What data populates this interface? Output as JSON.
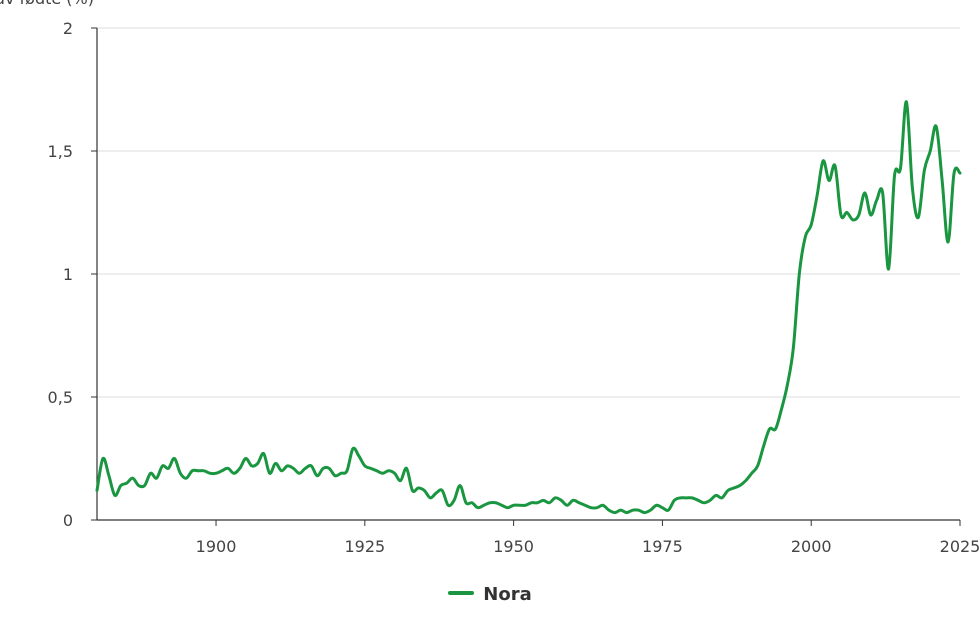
{
  "chart_data": {
    "type": "line",
    "ylabel": "Andel av fødte (%)",
    "xlabel": "",
    "xlim": [
      1880,
      2025
    ],
    "ylim": [
      0,
      2
    ],
    "x_ticks": [
      1900,
      1925,
      1950,
      1975,
      2000,
      2025
    ],
    "x_tick_labels": [
      "1900",
      "1925",
      "1950",
      "1975",
      "2000",
      "2025"
    ],
    "y_ticks": [
      0,
      0.5,
      1,
      1.5,
      2
    ],
    "y_tick_labels": [
      "0",
      "0,5",
      "1",
      "1,5",
      "2"
    ],
    "grid": "horizontal",
    "legend_position": "bottom-center",
    "colors": {
      "series": "#1a9641"
    },
    "series": [
      {
        "name": "Nora",
        "x": [
          1880,
          1881,
          1882,
          1883,
          1884,
          1885,
          1886,
          1887,
          1888,
          1889,
          1890,
          1891,
          1892,
          1893,
          1894,
          1895,
          1896,
          1897,
          1898,
          1899,
          1900,
          1901,
          1902,
          1903,
          1904,
          1905,
          1906,
          1907,
          1908,
          1909,
          1910,
          1911,
          1912,
          1913,
          1914,
          1915,
          1916,
          1917,
          1918,
          1919,
          1920,
          1921,
          1922,
          1923,
          1924,
          1925,
          1926,
          1927,
          1928,
          1929,
          1930,
          1931,
          1932,
          1933,
          1934,
          1935,
          1936,
          1937,
          1938,
          1939,
          1940,
          1941,
          1942,
          1943,
          1944,
          1945,
          1946,
          1947,
          1948,
          1949,
          1950,
          1951,
          1952,
          1953,
          1954,
          1955,
          1956,
          1957,
          1958,
          1959,
          1960,
          1961,
          1962,
          1963,
          1964,
          1965,
          1966,
          1967,
          1968,
          1969,
          1970,
          1971,
          1972,
          1973,
          1974,
          1975,
          1976,
          1977,
          1978,
          1979,
          1980,
          1981,
          1982,
          1983,
          1984,
          1985,
          1986,
          1987,
          1988,
          1989,
          1990,
          1991,
          1992,
          1993,
          1994,
          1995,
          1996,
          1997,
          1998,
          1999,
          2000,
          2001,
          2002,
          2003,
          2004,
          2005,
          2006,
          2007,
          2008,
          2009,
          2010,
          2011,
          2012,
          2013,
          2014,
          2015,
          2016,
          2017,
          2018,
          2019,
          2020,
          2021,
          2022,
          2023,
          2024,
          2025
        ],
        "values": [
          0.12,
          0.25,
          0.18,
          0.1,
          0.14,
          0.15,
          0.17,
          0.14,
          0.14,
          0.19,
          0.17,
          0.22,
          0.21,
          0.25,
          0.19,
          0.17,
          0.2,
          0.2,
          0.2,
          0.19,
          0.19,
          0.2,
          0.21,
          0.19,
          0.21,
          0.25,
          0.22,
          0.23,
          0.27,
          0.19,
          0.23,
          0.2,
          0.22,
          0.21,
          0.19,
          0.21,
          0.22,
          0.18,
          0.21,
          0.21,
          0.18,
          0.19,
          0.2,
          0.29,
          0.26,
          0.22,
          0.21,
          0.2,
          0.19,
          0.2,
          0.19,
          0.16,
          0.21,
          0.12,
          0.13,
          0.12,
          0.09,
          0.11,
          0.12,
          0.06,
          0.08,
          0.14,
          0.07,
          0.07,
          0.05,
          0.06,
          0.07,
          0.07,
          0.06,
          0.05,
          0.06,
          0.06,
          0.06,
          0.07,
          0.07,
          0.08,
          0.07,
          0.09,
          0.08,
          0.06,
          0.08,
          0.07,
          0.06,
          0.05,
          0.05,
          0.06,
          0.04,
          0.03,
          0.04,
          0.03,
          0.04,
          0.04,
          0.03,
          0.04,
          0.06,
          0.05,
          0.04,
          0.08,
          0.09,
          0.09,
          0.09,
          0.08,
          0.07,
          0.08,
          0.1,
          0.09,
          0.12,
          0.13,
          0.14,
          0.16,
          0.19,
          0.22,
          0.3,
          0.37,
          0.37,
          0.45,
          0.55,
          0.7,
          1.0,
          1.15,
          1.2,
          1.32,
          1.46,
          1.38,
          1.44,
          1.24,
          1.25,
          1.22,
          1.24,
          1.33,
          1.24,
          1.3,
          1.33,
          1.02,
          1.4,
          1.43,
          1.7,
          1.35,
          1.23,
          1.42,
          1.5,
          1.6,
          1.38,
          1.13,
          1.41,
          1.41
        ]
      }
    ]
  }
}
